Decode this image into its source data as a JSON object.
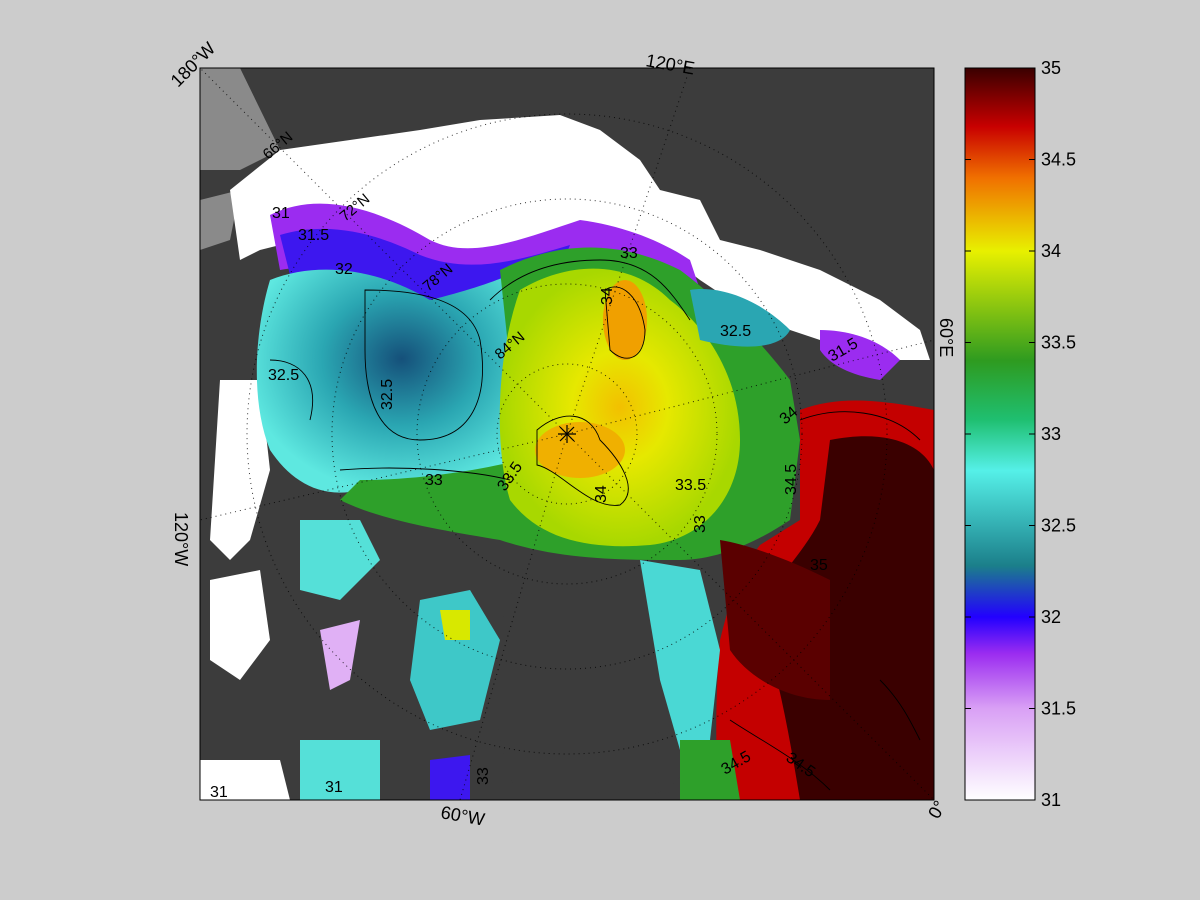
{
  "map": {
    "edge_labels": {
      "top_left": "180°W",
      "top": "120°E",
      "right": "60°E",
      "left": "120°W",
      "bottom": "60°W",
      "bottom_right": "0°"
    },
    "latitude_labels": [
      "66°N",
      "72°N",
      "78°N",
      "84°N"
    ],
    "contour_labels": [
      "31",
      "31.5",
      "32",
      "32.5",
      "32.5",
      "33",
      "33.5",
      "34",
      "34",
      "33.5",
      "33",
      "34",
      "34.5",
      "34.5",
      "34.5",
      "35",
      "33",
      "32.5",
      "31.5",
      "31",
      "33",
      "31"
    ],
    "colors": {
      "background": "#cccccc",
      "land": "#3c3c3c",
      "ice": "#ffffff",
      "grey_land": "#8a8a8a"
    }
  },
  "colorbar": {
    "min": 31,
    "max": 35,
    "ticks": [
      "35",
      "34.5",
      "34",
      "33.5",
      "33",
      "32.5",
      "32",
      "31.5",
      "31"
    ],
    "stops": [
      "#ffffff",
      "#d9a0f5",
      "#9b2cf0",
      "#2200ff",
      "#1b7f8a",
      "#55f0e8",
      "#1fbf70",
      "#2e9b20",
      "#e8f000",
      "#f07000",
      "#c80000",
      "#3a0000"
    ]
  }
}
